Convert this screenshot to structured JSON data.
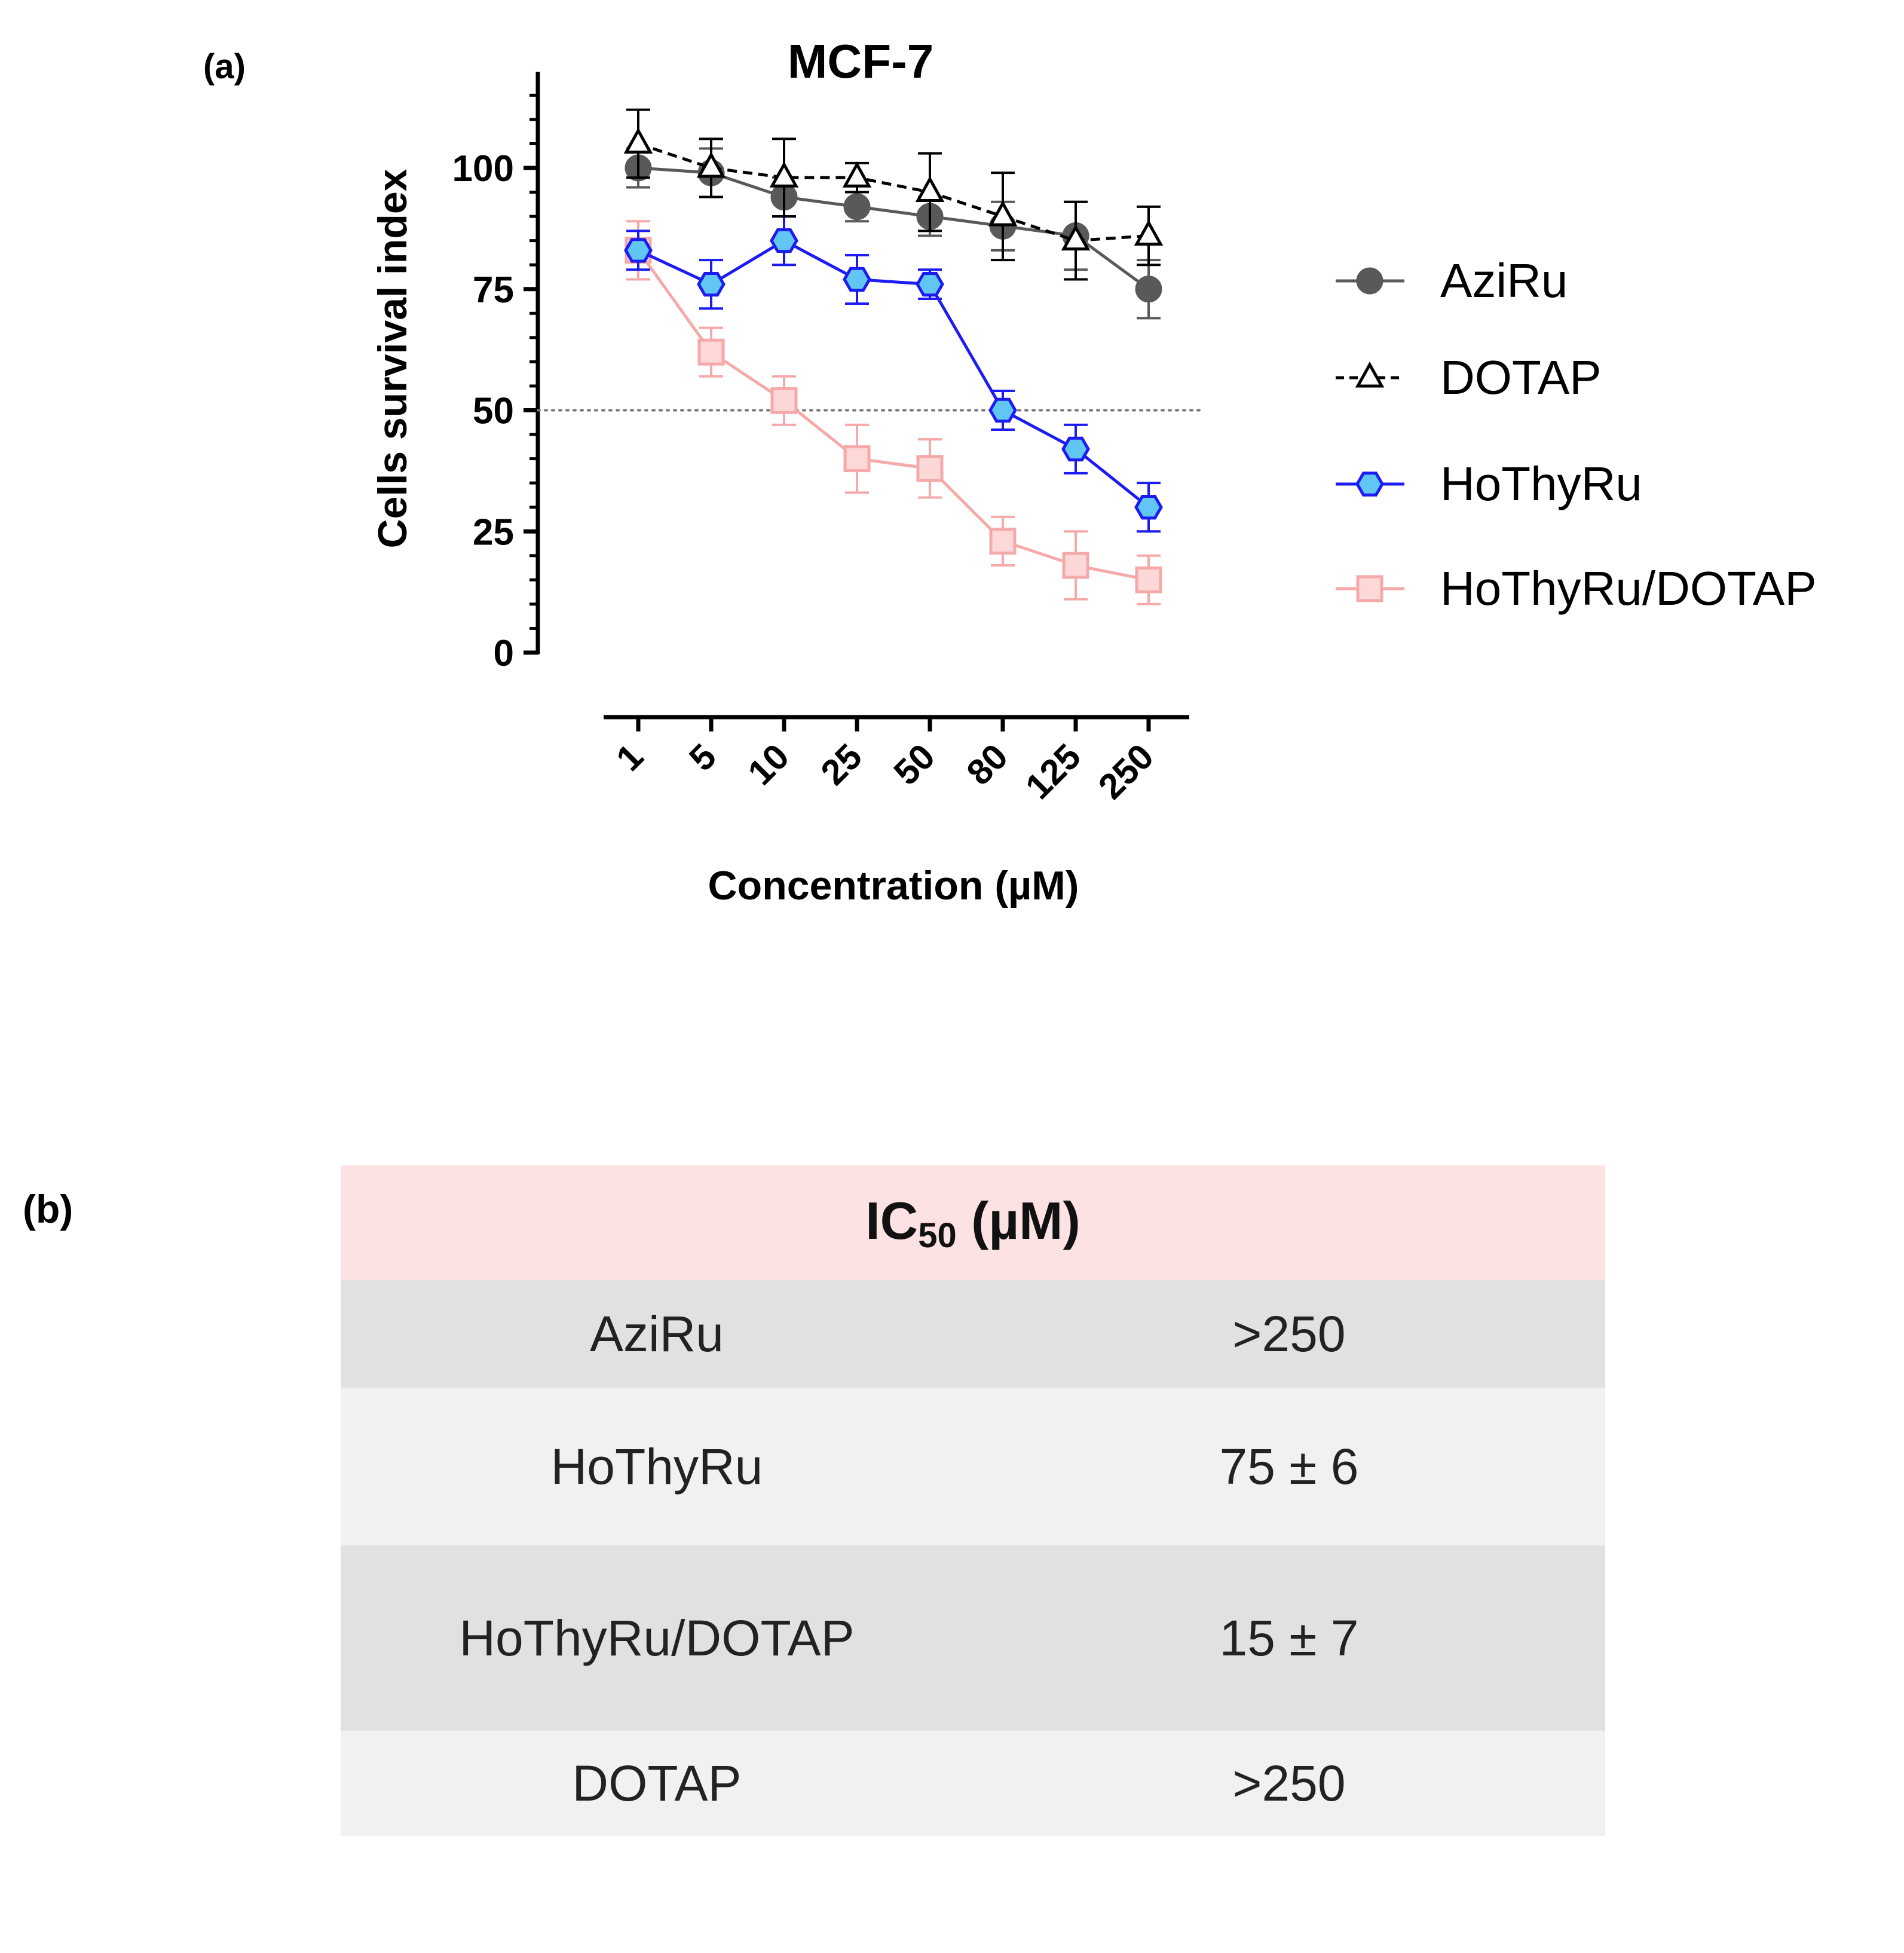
{
  "panel_a_label": "(a)",
  "panel_b_label": "(b)",
  "chart_data": {
    "type": "line",
    "title": "MCF-7",
    "xlabel": "Concentration (µM)",
    "ylabel": "Cells survival index",
    "categories": [
      "1",
      "5",
      "10",
      "25",
      "50",
      "80",
      "125",
      "250"
    ],
    "ylim": [
      0,
      120
    ],
    "yticks": [
      0,
      25,
      50,
      75,
      100
    ],
    "reference_line": {
      "y": 50,
      "style": "dotted"
    },
    "legend_position": "right",
    "grid": false,
    "series": [
      {
        "name": "AziRu",
        "color": "#595959",
        "marker": "circle",
        "line": "solid",
        "values": [
          100,
          99,
          94,
          92,
          90,
          88,
          86,
          75
        ],
        "errors": [
          4,
          5,
          4,
          3,
          4,
          5,
          7,
          6
        ]
      },
      {
        "name": "DOTAP",
        "color": "#000000",
        "marker": "open-triangle",
        "line": "dashed",
        "values": [
          105,
          100,
          98,
          98,
          95,
          90,
          85,
          86
        ],
        "errors": [
          7,
          6,
          8,
          3,
          8,
          9,
          8,
          6
        ]
      },
      {
        "name": "HoThyRu",
        "color": "#1c1cf2",
        "fill": "#62c6f4",
        "marker": "hexagon",
        "line": "solid",
        "values": [
          83,
          76,
          85,
          77,
          76,
          50,
          42,
          30
        ],
        "errors": [
          4,
          5,
          5,
          5,
          3,
          4,
          5,
          5
        ]
      },
      {
        "name": "HoThyRu/DOTAP",
        "color": "#f6a9a9",
        "fill": "#fcd8d8",
        "marker": "square",
        "line": "solid",
        "values": [
          83,
          62,
          52,
          40,
          38,
          23,
          18,
          15
        ],
        "errors": [
          6,
          5,
          5,
          7,
          6,
          5,
          7,
          5
        ]
      }
    ]
  },
  "table": {
    "header_main": "IC",
    "header_sub": "50",
    "header_unit": " (µM)",
    "rows": [
      {
        "name": "AziRu",
        "value": ">250"
      },
      {
        "name": "HoThyRu",
        "value": "75 ± 6"
      },
      {
        "name": "HoThyRu/DOTAP",
        "value": "15 ± 7"
      },
      {
        "name": "DOTAP",
        "value": ">250"
      }
    ]
  }
}
